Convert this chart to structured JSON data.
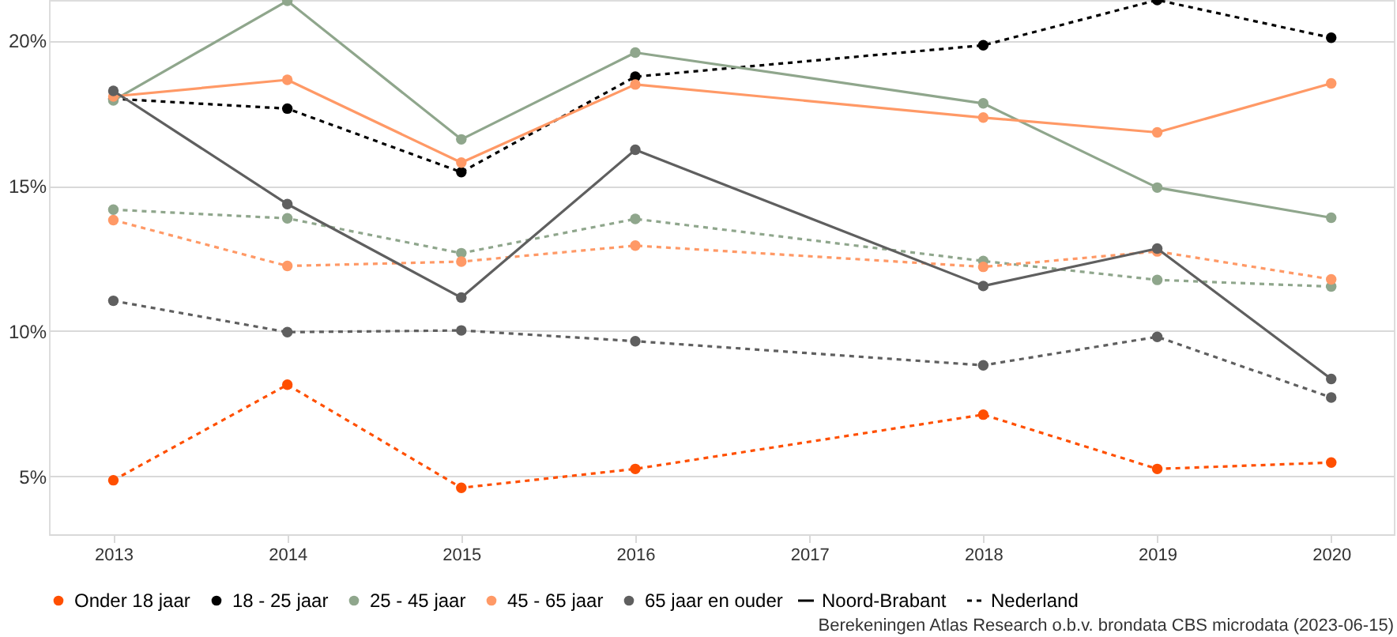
{
  "chart_data": {
    "type": "line",
    "x": [
      2013,
      2014,
      2015,
      2016,
      2018,
      2019,
      2020
    ],
    "xlim": [
      2012.63,
      2020.36
    ],
    "xticks": [
      2013,
      2014,
      2015,
      2016,
      2017,
      2018,
      2019,
      2020
    ],
    "ylim": [
      3,
      21.4
    ],
    "yticks": [
      {
        "value": 5,
        "label": "5%"
      },
      {
        "value": 10,
        "label": "10%"
      },
      {
        "value": 15,
        "label": "15%"
      },
      {
        "value": 20,
        "label": "20%"
      }
    ],
    "grid": "y",
    "legend": "bottom",
    "marker": "circle",
    "annotations": [
      "Noord-Brabant",
      "Nederland",
      "Berekeningen Atlas Research o.b.v. brondata CBS microdata (2023-06-15)"
    ],
    "series": [
      {
        "name": "Onder 18 jaar",
        "color": "#ff4f00",
        "line_style": "dashed",
        "values": [
          4.86,
          8.15,
          4.6,
          5.25,
          7.12,
          5.25,
          5.47
        ]
      },
      {
        "name": "18 - 25 jaar",
        "color": "#000000",
        "line_style": "dashed",
        "values": [
          18.0,
          17.66,
          15.47,
          18.76,
          19.84,
          21.4,
          20.1
        ]
      },
      {
        "name": "25 - 45 jaar",
        "color": "#8fa68c",
        "line_style": "solid",
        "values": [
          17.94,
          21.37,
          16.6,
          19.59,
          17.84,
          14.94,
          13.9
        ]
      },
      {
        "color": "#8fa68c",
        "line_style": "dashed",
        "values": [
          14.18,
          13.88,
          12.68,
          13.86,
          12.41,
          11.76,
          11.53
        ]
      },
      {
        "name": "45 - 65 jaar",
        "color": "#ff9966",
        "line_style": "solid",
        "values": [
          18.08,
          18.65,
          15.8,
          18.49,
          17.35,
          16.84,
          18.53
        ]
      },
      {
        "color": "#ff9966",
        "line_style": "dashed",
        "values": [
          13.82,
          12.24,
          12.39,
          12.94,
          12.21,
          12.74,
          11.78
        ]
      },
      {
        "name": "65 jaar en ouder",
        "color": "#5f5f5f",
        "line_style": "solid",
        "values": [
          18.27,
          14.37,
          11.15,
          16.24,
          11.55,
          12.84,
          8.35
        ]
      },
      {
        "color": "#5f5f5f",
        "line_style": "dashed",
        "values": [
          11.04,
          9.96,
          10.02,
          9.65,
          8.82,
          9.8,
          7.71
        ]
      }
    ]
  }
}
